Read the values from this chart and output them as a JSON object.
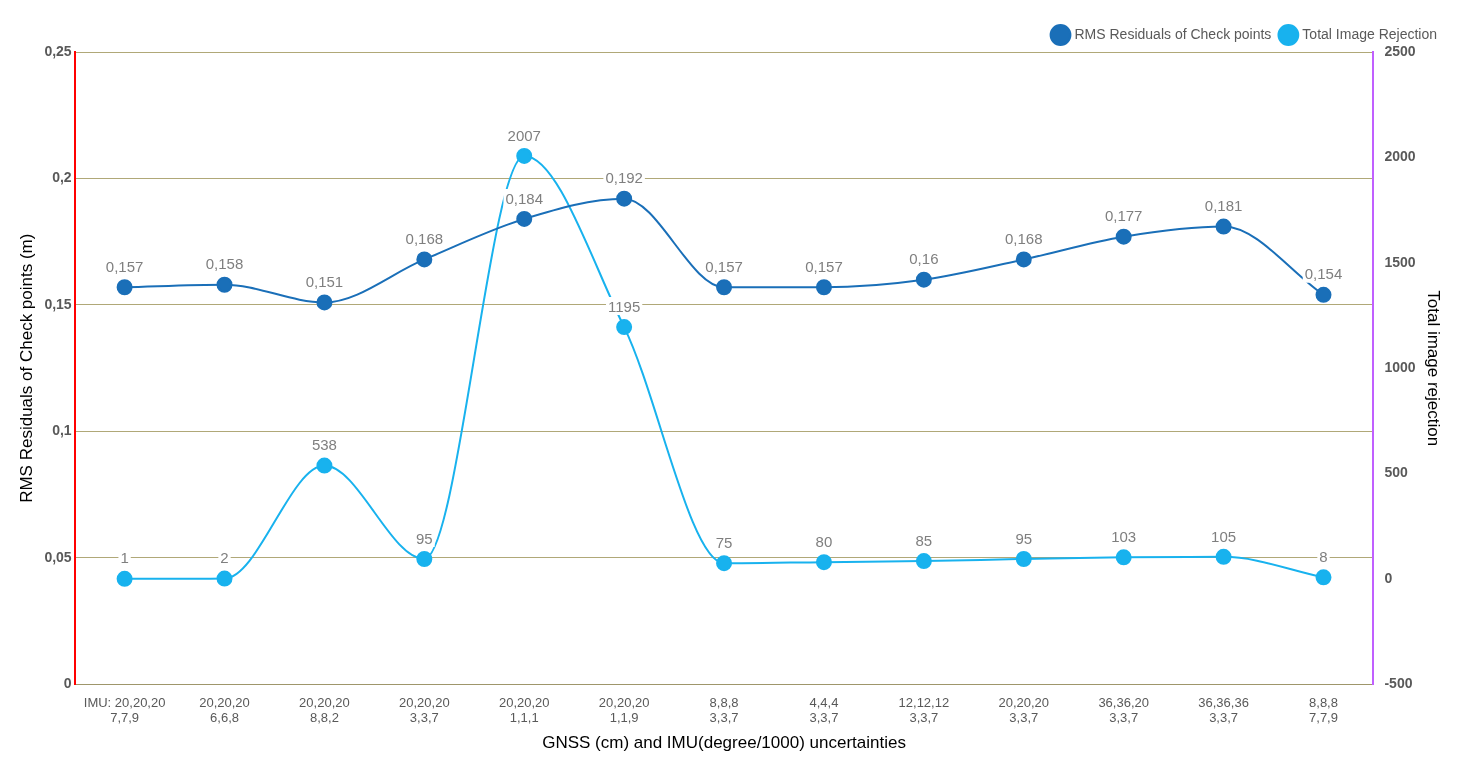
{
  "chart_data": {
    "type": "line",
    "xlabel": "GNSS (cm) and IMU(degree/1000) uncertainties",
    "ylabel": "RMS Residuals of Check points (m)",
    "y2label": "Total image rejection",
    "categories": [
      "IMU: 20,20,20\n7,7,9",
      "20,20,20\n6,6,8",
      "20,20,20\n8,8,2",
      "20,20,20\n3,3,7",
      "20,20,20\n1,1,1",
      "20,20,20\n1,1,9",
      "8,8,8\n3,3,7",
      "4,4,4\n3,3,7",
      "12,12,12\n3,3,7",
      "20,20,20\n3,3,7",
      "36,36,20\n3,3,7",
      "36,36,36\n3,3,7",
      "8,8,8\n7,7,9"
    ],
    "series": [
      {
        "name": "RMS Residuals of Check points",
        "color": "#1a6fb8",
        "values": [
          0.157,
          0.158,
          0.151,
          0.168,
          0.184,
          0.192,
          0.157,
          0.157,
          0.16,
          0.168,
          0.177,
          0.181,
          0.154
        ],
        "value_labels": [
          "0,157",
          "0,158",
          "0,151",
          "0,168",
          "0,184",
          "0,192",
          "0,157",
          "0,157",
          "0,16",
          "0,168",
          "0,177",
          "0,181",
          "0,154"
        ]
      },
      {
        "name": "Total Image Rejection",
        "color": "#18b2ee",
        "axis": "y2",
        "values": [
          1,
          2,
          538,
          95,
          2007,
          1195,
          75,
          80,
          85,
          95,
          103,
          105,
          8
        ],
        "value_labels": [
          "1",
          "2",
          "538",
          "95",
          "2007",
          "1195",
          "75",
          "80",
          "85",
          "95",
          "103",
          "105",
          "8"
        ]
      }
    ],
    "ylim": [
      0,
      0.25
    ],
    "yticks": [
      0,
      {
        "value": 0.05,
        "label": "0,05"
      },
      {
        "value": 0.1,
        "label": "0,1"
      },
      {
        "value": 0.15,
        "label": "0,15"
      },
      {
        "value": 0.2,
        "label": "0,2"
      },
      {
        "value": 0.25,
        "label": "0,25"
      }
    ],
    "y2lim": [
      -500,
      2500
    ],
    "y2ticks": [
      -500,
      0,
      500,
      1000,
      1500,
      2000,
      2500
    ],
    "grid": "y",
    "legend": "top right",
    "marker": "circle",
    "line_style": "solid"
  }
}
